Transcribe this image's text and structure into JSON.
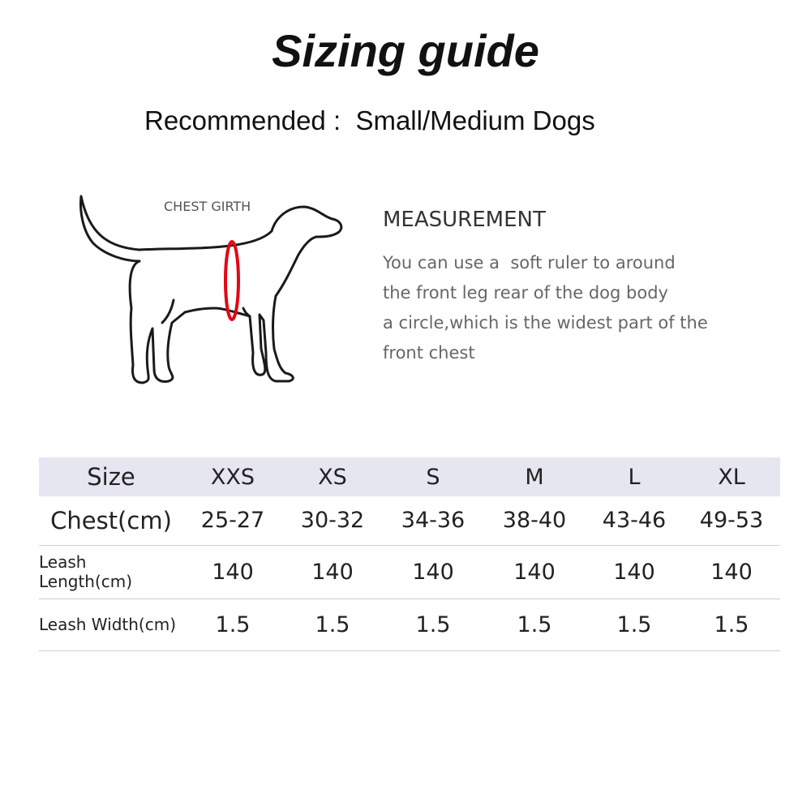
{
  "title": "Sizing guide",
  "recommended": "Recommended :  Small/Medium Dogs",
  "illustration": {
    "label": "CHEST GIRTH",
    "girth_color": "#e30613",
    "icon": "dog-silhouette-icon"
  },
  "measurement": {
    "heading": "MEASUREMENT",
    "lines": [
      "You can use a  soft ruler to around",
      "the front leg rear of the dog body",
      "a circle,which is the widest part of the",
      "front chest"
    ]
  },
  "table": {
    "header": {
      "label": "Size",
      "values": [
        "XXS",
        "XS",
        "S",
        "M",
        "L",
        "XL"
      ]
    },
    "rows": [
      {
        "label": "Chest(cm)",
        "values": [
          "25-27",
          "30-32",
          "34-36",
          "38-40",
          "43-46",
          "49-53"
        ]
      },
      {
        "label": "Leash Length(cm)",
        "values": [
          "140",
          "140",
          "140",
          "140",
          "140",
          "140"
        ]
      },
      {
        "label": "Leash Width(cm)",
        "values": [
          "1.5",
          "1.5",
          "1.5",
          "1.5",
          "1.5",
          "1.5"
        ]
      }
    ],
    "header_bg": "#e6e6f0"
  }
}
